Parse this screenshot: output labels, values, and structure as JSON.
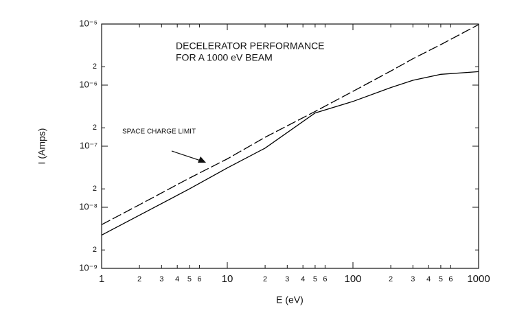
{
  "chart_data": {
    "type": "line",
    "title": [
      "DECELERATOR PERFORMANCE",
      "FOR A 1000 eV BEAM"
    ],
    "x_label": "E (eV)",
    "y_label": "I (Amps)",
    "annotation": "SPACE CHARGE LIMIT",
    "log_x": true,
    "log_y": true,
    "x": [
      1,
      2,
      5,
      10,
      20,
      50,
      100,
      200,
      300,
      500,
      1000
    ],
    "series": [
      {
        "name": "SPACE CHARGE LIMIT",
        "color": "#000000",
        "style": "dashed",
        "values": [
          5.2e-09,
          1.1e-08,
          3e-08,
          6.2e-08,
          1.4e-07,
          3.7e-07,
          7.9e-07,
          1.7e-06,
          2.7e-06,
          4.6e-06,
          9.8e-06
        ]
      },
      {
        "color": "#000000",
        "style": "solid",
        "values": [
          3.5e-09,
          7.4e-09,
          2e-08,
          4.4e-08,
          9.3e-08,
          3.5e-07,
          5.4e-07,
          9.1e-07,
          1.2e-06,
          1.5e-06,
          1.66e-06
        ]
      }
    ],
    "xlim": [
      1,
      1000
    ],
    "ylim": [
      1e-09,
      1e-05
    ],
    "xticks": [
      1,
      2,
      3,
      4,
      5,
      6,
      10,
      {
        "value": 20,
        "label": "2"
      },
      {
        "value": 30,
        "label": "3"
      },
      {
        "value": 40,
        "label": "4"
      },
      {
        "value": 50,
        "label": "5"
      },
      {
        "value": 60,
        "label": "6"
      },
      100,
      {
        "value": 200,
        "label": "2"
      },
      {
        "value": 300,
        "label": "3"
      },
      {
        "value": 400,
        "label": "4"
      },
      {
        "value": 500,
        "label": "5"
      },
      {
        "value": 600,
        "label": "6"
      },
      1000
    ],
    "yticks": [
      {
        "value": 1e-09,
        "label": "10⁻⁹"
      },
      {
        "value": 2e-09,
        "label": "2"
      },
      {
        "value": 1e-08,
        "label": "10⁻⁸"
      },
      {
        "value": 2e-08,
        "label": "2"
      },
      {
        "value": 1e-07,
        "label": "10⁻⁷"
      },
      {
        "value": 2e-07,
        "label": "2"
      },
      {
        "value": 1e-06,
        "label": "10⁻⁶"
      },
      {
        "value": 2e-06,
        "label": "2"
      },
      {
        "value": 1e-05,
        "label": "10⁻⁵"
      }
    ],
    "grid": false
  }
}
